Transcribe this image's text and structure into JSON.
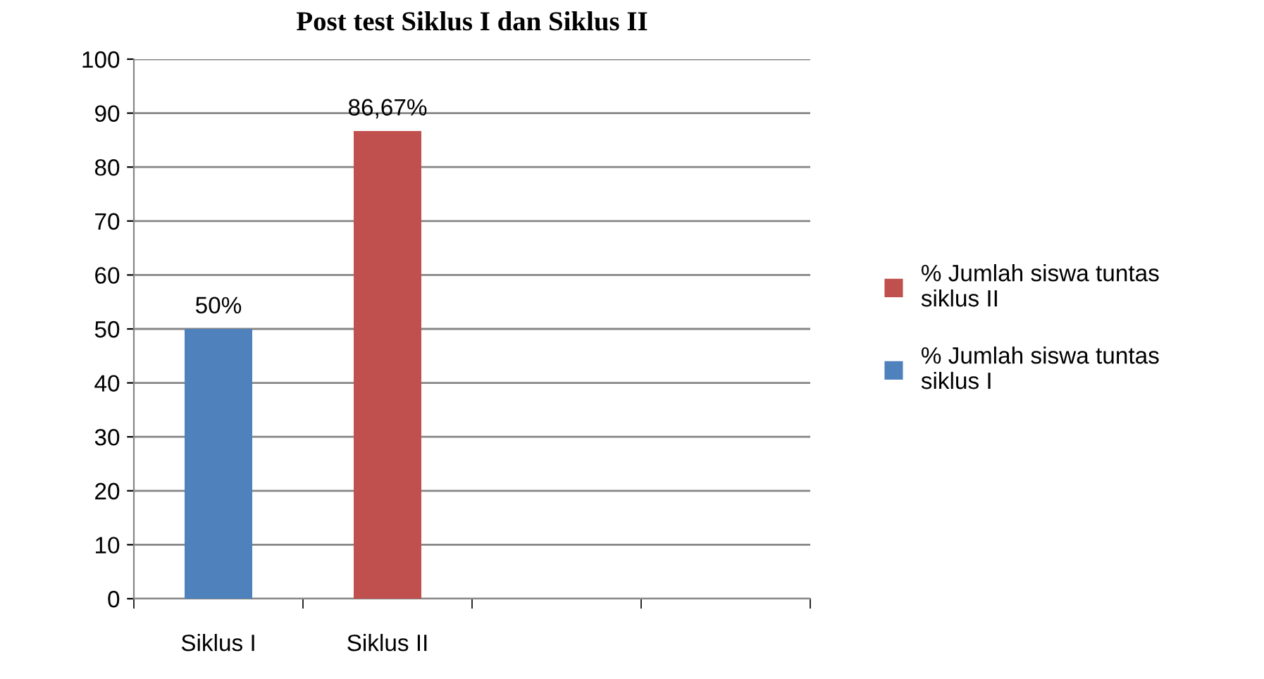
{
  "chart_data": {
    "type": "bar",
    "title": "Post test Siklus I dan Siklus II",
    "categories": [
      "Siklus I",
      "Siklus II",
      null,
      null
    ],
    "series": [
      {
        "name": "% Jumlah siswa tuntas siklus I",
        "color": "#4f81bd",
        "values": [
          50,
          null,
          null,
          null
        ],
        "value_labels": [
          "50%",
          null,
          null,
          null
        ]
      },
      {
        "name": "% Jumlah siswa tuntas siklus II",
        "color": "#c0504d",
        "values": [
          null,
          86.67,
          null,
          null
        ],
        "value_labels": [
          null,
          "86,67%",
          null,
          null
        ]
      }
    ],
    "ylim": [
      0,
      100
    ],
    "yticks": [
      0,
      10,
      20,
      30,
      40,
      50,
      60,
      70,
      80,
      90,
      100
    ],
    "grid": "y",
    "legend": "right"
  }
}
